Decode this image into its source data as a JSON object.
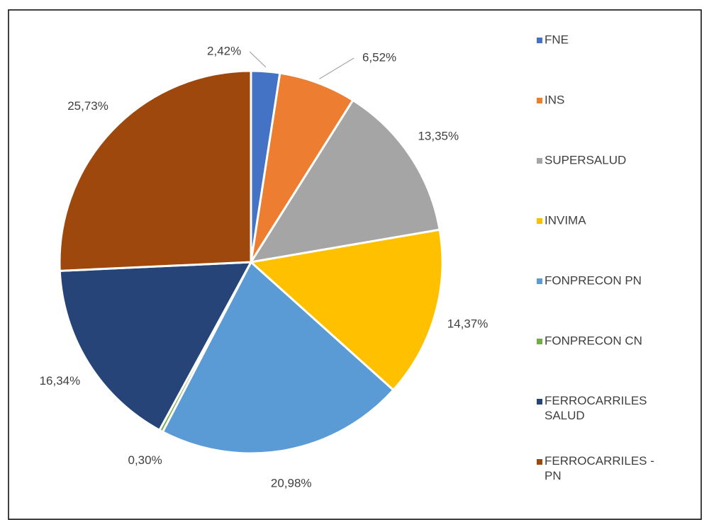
{
  "chart_data": {
    "type": "pie",
    "categories": [
      "FNE",
      "INS",
      "SUPERSALUD",
      "INVIMA",
      "FONPRECON PN",
      "FONPRECON CN",
      "FERROCARRILES SALUD",
      "FERROCARRILES - PN"
    ],
    "values": [
      2.42,
      6.52,
      13.35,
      14.37,
      20.98,
      0.3,
      16.34,
      25.73
    ],
    "value_labels": [
      "2,42%",
      "6,52%",
      "13,35%",
      "14,37%",
      "20,98%",
      "0,30%",
      "16,34%",
      "25,73%"
    ],
    "colors": [
      "#4472c4",
      "#ed7d31",
      "#a5a5a5",
      "#ffc000",
      "#5b9bd5",
      "#70ad47",
      "#264478",
      "#9e480e"
    ],
    "legend": "right"
  }
}
